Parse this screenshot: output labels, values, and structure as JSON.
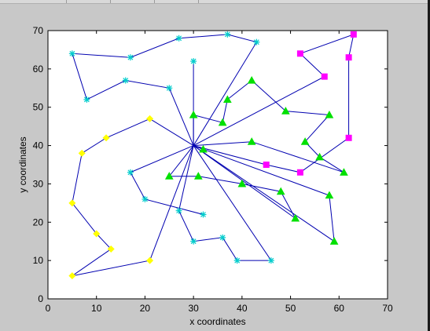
{
  "chart_data": {
    "type": "scatter",
    "xlabel": "x coordinates",
    "ylabel": "y coordinates",
    "xlim": [
      0,
      70
    ],
    "ylim": [
      0,
      70
    ],
    "xticks": [
      0,
      10,
      20,
      30,
      40,
      50,
      60,
      70
    ],
    "yticks": [
      0,
      10,
      20,
      30,
      40,
      50,
      60,
      70
    ],
    "grid": false,
    "line_color": "#0000b0",
    "hub": [
      30,
      40
    ],
    "series": [
      {
        "marker": "star",
        "color": "#00cccc",
        "points": [
          [
            30,
            62
          ],
          [
            43,
            67
          ],
          [
            37,
            69
          ],
          [
            27,
            68
          ],
          [
            17,
            63
          ],
          [
            5,
            64
          ],
          [
            8,
            52
          ],
          [
            16,
            57
          ],
          [
            25,
            55
          ],
          [
            17,
            33
          ],
          [
            20,
            26
          ],
          [
            32,
            22
          ],
          [
            27,
            23
          ],
          [
            30,
            15
          ],
          [
            36,
            16
          ],
          [
            39,
            10
          ],
          [
            46,
            10
          ]
        ],
        "tours": [
          [
            [
              30,
              40
            ],
            [
              30,
              62
            ]
          ],
          [
            [
              30,
              40
            ],
            [
              43,
              67
            ],
            [
              37,
              69
            ],
            [
              27,
              68
            ],
            [
              17,
              63
            ],
            [
              5,
              64
            ],
            [
              8,
              52
            ],
            [
              16,
              57
            ],
            [
              25,
              55
            ],
            [
              30,
              40
            ]
          ],
          [
            [
              30,
              40
            ],
            [
              17,
              33
            ],
            [
              20,
              26
            ],
            [
              32,
              22
            ]
          ],
          [
            [
              30,
              40
            ],
            [
              46,
              10
            ],
            [
              39,
              10
            ],
            [
              36,
              16
            ],
            [
              30,
              15
            ],
            [
              27,
              23
            ],
            [
              30,
              40
            ]
          ]
        ]
      },
      {
        "marker": "triangle",
        "color": "#00e000",
        "points": [
          [
            30,
            48
          ],
          [
            36,
            46
          ],
          [
            37,
            52
          ],
          [
            42,
            57
          ],
          [
            32,
            39
          ],
          [
            42,
            41
          ],
          [
            49,
            49
          ],
          [
            58,
            48
          ],
          [
            53,
            41
          ],
          [
            56,
            37
          ],
          [
            61,
            33
          ],
          [
            25,
            32
          ],
          [
            31,
            32
          ],
          [
            40,
            30
          ],
          [
            48,
            28
          ],
          [
            51,
            21
          ],
          [
            58,
            27
          ],
          [
            59,
            15
          ]
        ],
        "tours": [
          [
            [
              30,
              40
            ],
            [
              30,
              48
            ],
            [
              36,
              46
            ],
            [
              37,
              52
            ],
            [
              42,
              57
            ],
            [
              49,
              49
            ],
            [
              58,
              48
            ],
            [
              53,
              41
            ],
            [
              56,
              37
            ],
            [
              61,
              33
            ],
            [
              42,
              41
            ],
            [
              30,
              40
            ]
          ],
          [
            [
              30,
              40
            ],
            [
              32,
              39
            ]
          ],
          [
            [
              30,
              40
            ],
            [
              25,
              32
            ],
            [
              31,
              32
            ],
            [
              40,
              30
            ],
            [
              48,
              28
            ],
            [
              51,
              21
            ],
            [
              30,
              40
            ]
          ],
          [
            [
              30,
              40
            ],
            [
              58,
              27
            ],
            [
              59,
              15
            ],
            [
              30,
              40
            ]
          ]
        ]
      },
      {
        "marker": "square",
        "color": "#ff00ff",
        "points": [
          [
            52,
            64
          ],
          [
            57,
            58
          ],
          [
            63,
            69
          ],
          [
            62,
            63
          ],
          [
            62,
            42
          ],
          [
            52,
            33
          ],
          [
            45,
            35
          ]
        ],
        "tours": [
          [
            [
              30,
              40
            ],
            [
              57,
              58
            ],
            [
              52,
              64
            ],
            [
              63,
              69
            ],
            [
              62,
              63
            ],
            [
              62,
              42
            ],
            [
              52,
              33
            ],
            [
              45,
              35
            ],
            [
              30,
              40
            ]
          ]
        ]
      },
      {
        "marker": "circle",
        "color": "#ffff00",
        "points": [
          [
            21,
            47
          ],
          [
            12,
            42
          ],
          [
            7,
            38
          ],
          [
            5,
            25
          ],
          [
            10,
            17
          ],
          [
            13,
            13
          ],
          [
            5,
            6
          ],
          [
            21,
            10
          ]
        ],
        "tours": [
          [
            [
              30,
              40
            ],
            [
              21,
              47
            ],
            [
              12,
              42
            ],
            [
              7,
              38
            ],
            [
              5,
              25
            ],
            [
              10,
              17
            ],
            [
              13,
              13
            ],
            [
              5,
              6
            ],
            [
              21,
              10
            ],
            [
              30,
              40
            ]
          ]
        ]
      }
    ]
  }
}
